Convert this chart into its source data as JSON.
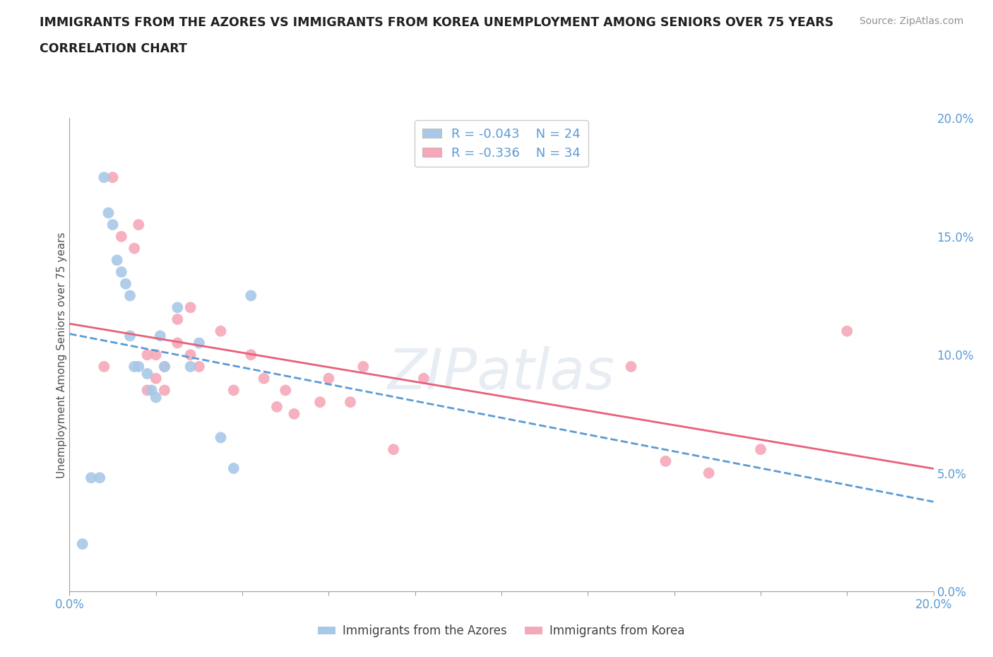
{
  "title_line1": "IMMIGRANTS FROM THE AZORES VS IMMIGRANTS FROM KOREA UNEMPLOYMENT AMONG SENIORS OVER 75 YEARS",
  "title_line2": "CORRELATION CHART",
  "source_text": "Source: ZipAtlas.com",
  "ylabel": "Unemployment Among Seniors over 75 years",
  "xlim": [
    0.0,
    0.2
  ],
  "ylim": [
    0.0,
    0.2
  ],
  "xticks": [
    0.0,
    0.02,
    0.04,
    0.06,
    0.08,
    0.1,
    0.12,
    0.14,
    0.16,
    0.18,
    0.2
  ],
  "yticks": [
    0.0,
    0.05,
    0.1,
    0.15,
    0.2
  ],
  "ytick_labels": [
    "0.0%",
    "5.0%",
    "10.0%",
    "15.0%",
    "20.0%"
  ],
  "watermark": "ZIPatlas",
  "legend_azores_label": "Immigrants from the Azores",
  "legend_korea_label": "Immigrants from Korea",
  "azores_R": "R = -0.043",
  "azores_N": "N = 24",
  "korea_R": "R = -0.336",
  "korea_N": "N = 34",
  "azores_color": "#a8c8e8",
  "korea_color": "#f5a8b8",
  "azores_line_color": "#5b9bd5",
  "korea_line_color": "#e8607a",
  "azores_x": [
    0.003,
    0.005,
    0.007,
    0.008,
    0.009,
    0.01,
    0.011,
    0.012,
    0.013,
    0.014,
    0.014,
    0.015,
    0.016,
    0.018,
    0.019,
    0.02,
    0.021,
    0.022,
    0.025,
    0.028,
    0.03,
    0.035,
    0.038,
    0.042
  ],
  "azores_y": [
    0.02,
    0.048,
    0.048,
    0.175,
    0.16,
    0.155,
    0.14,
    0.135,
    0.13,
    0.125,
    0.108,
    0.095,
    0.095,
    0.092,
    0.085,
    0.082,
    0.108,
    0.095,
    0.12,
    0.095,
    0.105,
    0.065,
    0.052,
    0.125
  ],
  "korea_x": [
    0.008,
    0.01,
    0.012,
    0.015,
    0.016,
    0.018,
    0.018,
    0.02,
    0.02,
    0.022,
    0.022,
    0.025,
    0.025,
    0.028,
    0.028,
    0.03,
    0.035,
    0.038,
    0.042,
    0.045,
    0.048,
    0.05,
    0.052,
    0.058,
    0.06,
    0.065,
    0.068,
    0.075,
    0.082,
    0.13,
    0.138,
    0.148,
    0.16,
    0.18
  ],
  "korea_y": [
    0.095,
    0.175,
    0.15,
    0.145,
    0.155,
    0.1,
    0.085,
    0.1,
    0.09,
    0.095,
    0.085,
    0.115,
    0.105,
    0.12,
    0.1,
    0.095,
    0.11,
    0.085,
    0.1,
    0.09,
    0.078,
    0.085,
    0.075,
    0.08,
    0.09,
    0.08,
    0.095,
    0.06,
    0.09,
    0.095,
    0.055,
    0.05,
    0.06,
    0.11
  ],
  "azores_line_intercept": 0.108,
  "azores_line_slope": -0.15,
  "korea_line_intercept": 0.108,
  "korea_line_slope": -3.0
}
